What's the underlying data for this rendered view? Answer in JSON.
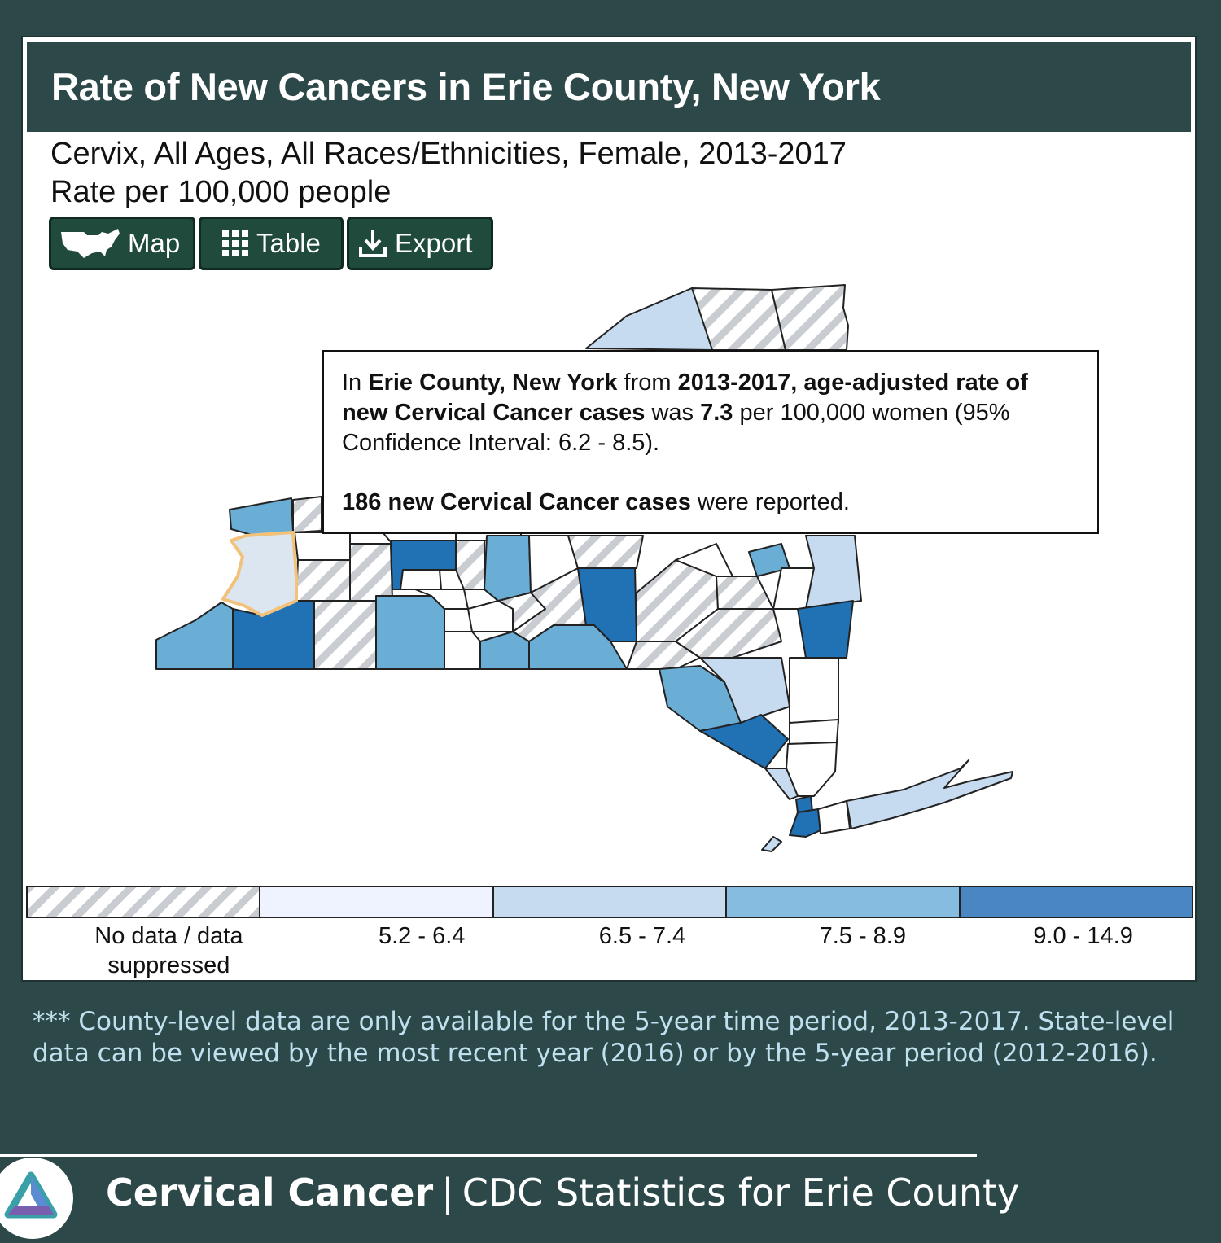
{
  "header": {
    "title": "Rate of New Cancers in Erie County, New York"
  },
  "subtitle": {
    "line1": "Cervix, All Ages, All Races/Ethnicities, Female, 2013-2017",
    "line2": "Rate per 100,000 people"
  },
  "buttons": {
    "map": "Map",
    "table": "Table",
    "export": "Export"
  },
  "tooltip": {
    "p1_a": "In ",
    "p1_county": "Erie County, New York",
    "p1_b": " from ",
    "p1_years": "2013-2017, age-adjusted rate of new Cervical Cancer cases",
    "p1_c": " was ",
    "p1_rate": "7.3",
    "p1_d": " per 100,000 women (95% Confidence Interval: 6.2 - 8.5).",
    "p2_count": "186 new Cervical Cancer cases",
    "p2_tail": " were reported."
  },
  "legend": [
    {
      "label": "No data / data suppressed",
      "color": "hatch"
    },
    {
      "label": "5.2 - 6.4",
      "color": "#eff3ff"
    },
    {
      "label": "6.5 - 7.4",
      "color": "#c6dbef"
    },
    {
      "label": "7.5 - 8.9",
      "color": "#85bcdf"
    },
    {
      "label": "9.0 - 14.9",
      "color": "#4a87c2"
    }
  ],
  "colors": {
    "background": "#2d4848",
    "class1": "#eff3ff",
    "class2": "#c6dbef",
    "class3": "#6aaed6",
    "class4": "#2171b5",
    "highlight": "#f2c27a"
  },
  "footnote": "*** County-level data are only available for the 5-year time period, 2013-2017. State-level data can be viewed by the most recent year (2016) or by the 5-year period (2012-2016).",
  "footer": {
    "strong": "Cervical Cancer",
    "separator": "|",
    "rest": "CDC Statistics for Erie County"
  }
}
